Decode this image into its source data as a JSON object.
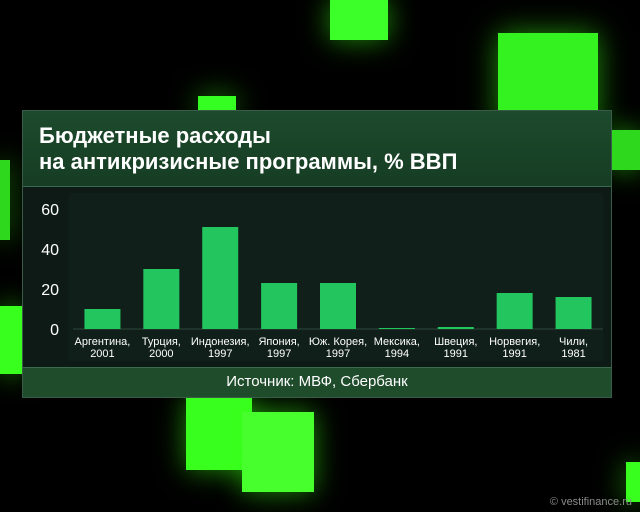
{
  "chart_data": {
    "type": "bar",
    "title_lines": [
      "Бюджетные расходы",
      "на антикризисные программы, % ВВП"
    ],
    "categories": [
      [
        "Аргентина,",
        "2001"
      ],
      [
        "Турция,",
        "2000"
      ],
      [
        "Индонезия,",
        "1997"
      ],
      [
        "Япония,",
        "1997"
      ],
      [
        "Юж. Корея,",
        "1997"
      ],
      [
        "Мексика,",
        "1994"
      ],
      [
        "Швеция,",
        "1991"
      ],
      [
        "Норвегия,",
        "1991"
      ],
      [
        "Чили,",
        "1981"
      ]
    ],
    "values": [
      10,
      30,
      51,
      23,
      23,
      0.5,
      1,
      18,
      16
    ],
    "ylim": [
      0,
      60
    ],
    "yticks": [
      0,
      20,
      40,
      60
    ],
    "bar_color": "#22c55e",
    "grid": false
  },
  "source": "Источник: МВФ, Сбербанк",
  "watermark": "© vestifinance.ru"
}
